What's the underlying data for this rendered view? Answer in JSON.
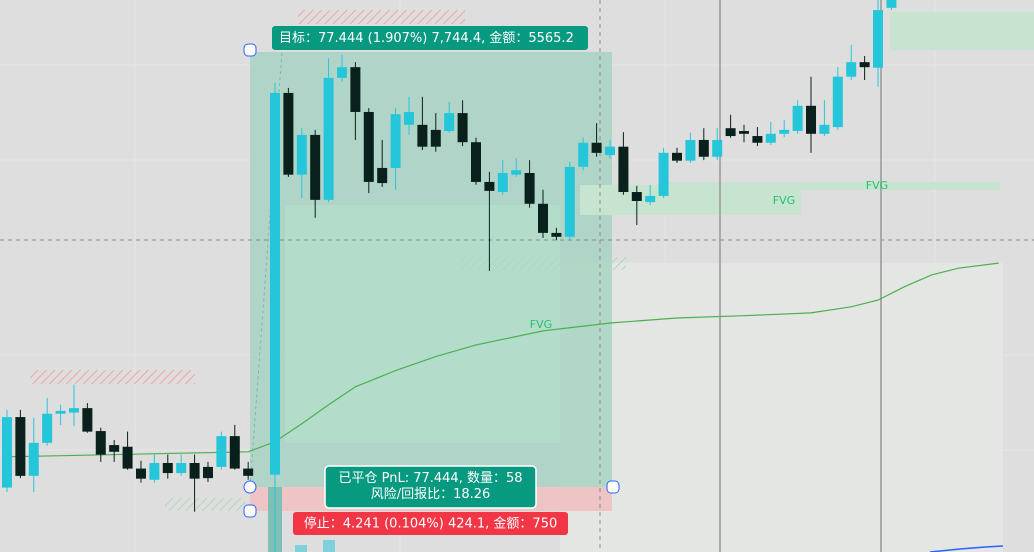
{
  "chart_data": {
    "type": "candlestick",
    "up_color": "#26c6da",
    "down_color": "#0a201d",
    "ma_color": "#4caf50",
    "xlim": [
      -0.52,
      76.64
    ],
    "ylim": [
      4049.0,
      4147.6
    ],
    "x": [
      0,
      1,
      2,
      3,
      4,
      5,
      6,
      7,
      8,
      9,
      10,
      11,
      12,
      13,
      14,
      15,
      16,
      17,
      18,
      20,
      21,
      22,
      23,
      24,
      25,
      26,
      27,
      28,
      29,
      30,
      31,
      32,
      33,
      34,
      35,
      36,
      37,
      38,
      39,
      40,
      41,
      42,
      43,
      44,
      45,
      46,
      47,
      48,
      49,
      50,
      51,
      52,
      53,
      54,
      55,
      56,
      57,
      58,
      59,
      60,
      61,
      62,
      63,
      64,
      65,
      66
    ],
    "open": [
      4060.5,
      4073.1,
      4062.6,
      4068.5,
      4073.7,
      4073.9,
      4074.7,
      4070.6,
      4068.1,
      4067.8,
      4063.9,
      4061.9,
      4064.9,
      4063.1,
      4064.9,
      4064.2,
      4064.2,
      4069.7,
      4063.9,
      4062.8,
      4131.0,
      4116.4,
      4123.5,
      4111.9,
      4133.7,
      4135.6,
      4127.6,
      4117.6,
      4117.6,
      4125.3,
      4125.3,
      4124.4,
      4124.2,
      4127.4,
      4122.2,
      4115.1,
      4113.3,
      4116.4,
      4116.7,
      4111.2,
      4106.0,
      4105.3,
      4117.8,
      4122.1,
      4119.9,
      4121.4,
      4113.3,
      4111.5,
      4112.6,
      4120.3,
      4118.9,
      4122.6,
      4119.6,
      4124.7,
      4124.2,
      4123.3,
      4122.1,
      4123.7,
      4124.2,
      4128.7,
      4123.7,
      4124.9,
      4133.9,
      4136.5,
      4135.5,
      4146.2
    ],
    "high": [
      4074.4,
      4074.4,
      4073.0,
      4076.5,
      4075.3,
      4078.9,
      4075.6,
      4071.2,
      4069.0,
      4070.5,
      4065.3,
      4066.4,
      4066.4,
      4066.4,
      4066.4,
      4065.1,
      4070.5,
      4071.7,
      4065.1,
      4132.8,
      4131.9,
      4124.7,
      4124.4,
      4137.2,
      4137.8,
      4136.5,
      4128.3,
      4122.6,
      4128.3,
      4130.3,
      4130.3,
      4127.4,
      4129.4,
      4129.7,
      4123.0,
      4116.9,
      4119.0,
      4119.4,
      4119.0,
      4113.7,
      4106.9,
      4118.7,
      4123.0,
      4125.6,
      4122.6,
      4124.0,
      4114.4,
      4114.6,
      4121.2,
      4121.2,
      4123.9,
      4124.7,
      4124.7,
      4127.1,
      4125.3,
      4124.9,
      4125.8,
      4126.2,
      4129.7,
      4133.9,
      4129.7,
      4135.6,
      4139.6,
      4137.6,
      4147.6,
      4147.6
    ],
    "low": [
      4059.7,
      4062.2,
      4059.7,
      4068.0,
      4071.7,
      4071.5,
      4070.3,
      4065.1,
      4065.1,
      4063.7,
      4061.4,
      4061.4,
      4062.1,
      4062.6,
      4056.2,
      4061.5,
      4063.7,
      4063.7,
      4061.9,
      4049.0,
      4116.0,
      4112.2,
      4108.7,
      4111.5,
      4133.0,
      4122.6,
      4113.1,
      4114.2,
      4113.7,
      4123.5,
      4120.8,
      4120.5,
      4123.9,
      4121.5,
      4114.6,
      4099.2,
      4112.8,
      4116.0,
      4110.5,
      4105.1,
      4104.7,
      4104.7,
      4117.2,
      4119.6,
      4119.2,
      4112.8,
      4107.4,
      4111.0,
      4112.2,
      4118.5,
      4118.5,
      4119.0,
      4119.0,
      4123.0,
      4122.2,
      4121.5,
      4121.7,
      4123.1,
      4123.7,
      4120.3,
      4123.3,
      4124.4,
      4133.3,
      4133.3,
      4132.1,
      4145.8
    ],
    "close": [
      4073.1,
      4062.6,
      4068.5,
      4073.7,
      4074.2,
      4074.7,
      4070.5,
      4066.4,
      4066.9,
      4063.9,
      4062.1,
      4064.9,
      4063.1,
      4064.9,
      4062.1,
      4062.2,
      4069.7,
      4063.9,
      4062.6,
      4131.0,
      4116.4,
      4123.5,
      4111.9,
      4133.7,
      4135.6,
      4127.6,
      4115.1,
      4114.9,
      4127.2,
      4127.6,
      4121.4,
      4121.4,
      4127.4,
      4122.2,
      4115.1,
      4113.5,
      4116.7,
      4117.2,
      4111.2,
      4106.0,
      4105.3,
      4117.8,
      4122.1,
      4120.3,
      4121.4,
      4113.3,
      4111.7,
      4112.6,
      4120.3,
      4118.9,
      4122.6,
      4119.6,
      4122.6,
      4123.3,
      4123.7,
      4122.1,
      4123.7,
      4124.4,
      4128.7,
      4123.7,
      4125.3,
      4133.9,
      4136.5,
      4135.6,
      4145.8,
      4147.6
    ],
    "ma": {
      "x": [
        0,
        18,
        20,
        22,
        24,
        26,
        29,
        32,
        35,
        40,
        45,
        50,
        55,
        60,
        63,
        65,
        67,
        69,
        71,
        74
      ],
      "values": [
        4066.0,
        4066.9,
        4068.7,
        4071.9,
        4075.3,
        4078.5,
        4081.4,
        4083.9,
        4086.0,
        4088.5,
        4089.9,
        4090.8,
        4091.2,
        4091.7,
        4092.8,
        4094.0,
        4096.4,
        4098.5,
        4099.7,
        4100.6
      ]
    },
    "annotations": {
      "target_label": "目标：77.444 (1.907%) 7,744.4, 金额：5565.2",
      "closed_label": "已平仓 PnL: 77.444, 数量：58",
      "rr_label": "风险/回报比：18.26",
      "stop_label": "停止：4.241 (0.104%) 424.1, 金额：750",
      "fvg_labels": [
        "FVG",
        "FVG",
        "FVG"
      ]
    }
  }
}
